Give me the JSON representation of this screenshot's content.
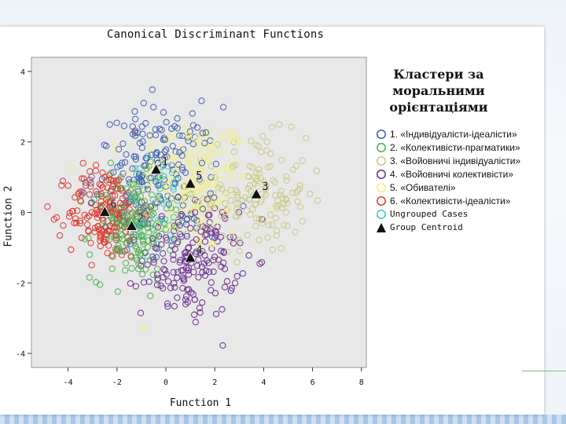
{
  "chart_data": {
    "type": "scatter",
    "title": "Canonical Discriminant Functions",
    "xlabel": "Function 1",
    "ylabel": "Function 2",
    "xlim": [
      -5.5,
      8.2
    ],
    "ylim": [
      -4.4,
      4.4
    ],
    "x_ticks": [
      "-4",
      "-2",
      "0",
      "2",
      "4",
      "6",
      "8"
    ],
    "y_ticks": [
      "4",
      "2",
      "0",
      "-2",
      "-4"
    ],
    "x_tick_values": [
      -4,
      -2,
      0,
      2,
      4,
      6,
      8
    ],
    "y_tick_values": [
      4,
      2,
      0,
      -2,
      -4
    ],
    "grid": false,
    "legend_placement": "right",
    "legend_title": "Кластери за моральними орієнтаціями",
    "series": [
      {
        "name": "1. «Індивідуалісти-ідеалісти»",
        "color": "#3e5fb0",
        "center": [
          -0.4,
          1.2
        ],
        "spread": [
          1.7,
          1.2
        ],
        "count": 170
      },
      {
        "name": "2. «Колективісти-прагматики»",
        "color": "#4caf50",
        "center": [
          -1.4,
          -0.4
        ],
        "spread": [
          1.1,
          1.0
        ],
        "count": 170
      },
      {
        "name": "3. «Войовничі індивідуалісти»",
        "color": "#c9c98a",
        "center": [
          3.7,
          0.5
        ],
        "spread": [
          1.4,
          1.1
        ],
        "count": 150
      },
      {
        "name": "4. «Войовничі колективісти»",
        "color": "#6a2d8f",
        "center": [
          1.0,
          -1.3
        ],
        "spread": [
          1.3,
          1.1
        ],
        "count": 190
      },
      {
        "name": "5. «Обивателі»",
        "color": "#f2f07a",
        "center": [
          1.0,
          0.8
        ],
        "spread": [
          1.6,
          1.3
        ],
        "count": 200
      },
      {
        "name": "6. «Колективісти-ідеалісти»",
        "color": "#e0352b",
        "center": [
          -2.5,
          0.0
        ],
        "spread": [
          1.0,
          0.9
        ],
        "count": 170
      },
      {
        "name": "Ungrouped Cases",
        "color": "#3cc4c4",
        "center": [
          -0.2,
          0.2
        ],
        "spread": [
          1.2,
          0.9
        ],
        "count": 60
      }
    ],
    "centroids_label": "Group Centroid",
    "centroids": [
      {
        "label": "1",
        "x": -0.4,
        "y": 1.2
      },
      {
        "label": "2",
        "x": -1.4,
        "y": -0.4
      },
      {
        "label": "3",
        "x": 3.7,
        "y": 0.5
      },
      {
        "label": "4",
        "x": 1.0,
        "y": -1.3
      },
      {
        "label": "5",
        "x": 1.0,
        "y": 0.8
      },
      {
        "label": "6",
        "x": -2.5,
        "y": 0.0
      }
    ]
  }
}
